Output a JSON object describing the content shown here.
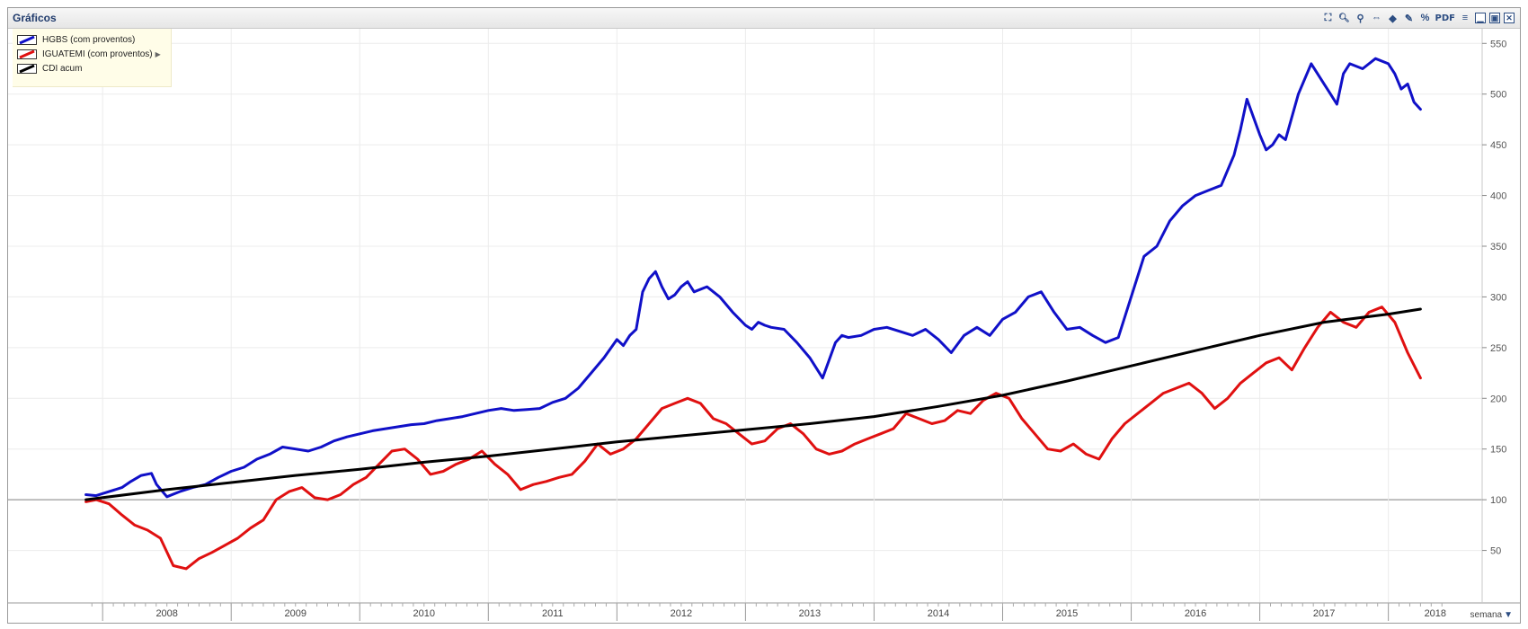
{
  "window": {
    "title": "Gráficos",
    "toolbar": [
      {
        "name": "fullscreen-icon",
        "glyph": "⛶"
      },
      {
        "name": "zoom-in-icon",
        "glyph": "🔍︎"
      },
      {
        "name": "zoom-out-icon",
        "glyph": "⚲"
      },
      {
        "name": "pan-icon",
        "glyph": "⇔"
      },
      {
        "name": "tag-icon",
        "glyph": "◆"
      },
      {
        "name": "draw-icon",
        "glyph": "✎"
      },
      {
        "name": "percent-icon",
        "glyph": "%"
      },
      {
        "name": "pdf-icon",
        "glyph": "PDF"
      },
      {
        "name": "menu-icon",
        "glyph": "≡"
      },
      {
        "name": "minimize-icon",
        "glyph": "▁"
      },
      {
        "name": "maximize-icon",
        "glyph": "▣"
      },
      {
        "name": "close-icon",
        "glyph": "✕"
      }
    ]
  },
  "interval": {
    "label": "semana"
  },
  "chart_data": {
    "type": "line",
    "title": "",
    "xlabel": "",
    "ylabel": "",
    "xlim": [
      2007.88,
      2018.45
    ],
    "ylim": [
      0,
      560
    ],
    "yticks": [
      50,
      100,
      150,
      200,
      250,
      300,
      350,
      400,
      450,
      500,
      550
    ],
    "reference_line": 100,
    "year_labels": [
      "2008",
      "2009",
      "2010",
      "2011",
      "2012",
      "2013",
      "2014",
      "2015",
      "2016",
      "2017",
      "2018"
    ],
    "legend_position": "top-left",
    "grid": true,
    "series": [
      {
        "name": "HGBS (com proventos)",
        "color": "#1010c8",
        "x": [
          2007.87,
          2007.95,
          2008.05,
          2008.15,
          2008.22,
          2008.3,
          2008.38,
          2008.42,
          2008.5,
          2008.6,
          2008.7,
          2008.8,
          2008.9,
          2009.0,
          2009.1,
          2009.2,
          2009.3,
          2009.4,
          2009.5,
          2009.6,
          2009.7,
          2009.8,
          2009.9,
          2010.0,
          2010.1,
          2010.2,
          2010.3,
          2010.4,
          2010.5,
          2010.6,
          2010.7,
          2010.8,
          2010.9,
          2011.0,
          2011.1,
          2011.2,
          2011.3,
          2011.4,
          2011.5,
          2011.6,
          2011.7,
          2011.8,
          2011.9,
          2012.0,
          2012.05,
          2012.1,
          2012.15,
          2012.2,
          2012.25,
          2012.3,
          2012.35,
          2012.4,
          2012.45,
          2012.5,
          2012.55,
          2012.6,
          2012.7,
          2012.8,
          2012.9,
          2013.0,
          2013.05,
          2013.1,
          2013.15,
          2013.2,
          2013.3,
          2013.4,
          2013.5,
          2013.6,
          2013.7,
          2013.75,
          2013.8,
          2013.9,
          2014.0,
          2014.1,
          2014.2,
          2014.3,
          2014.4,
          2014.5,
          2014.6,
          2014.7,
          2014.8,
          2014.9,
          2015.0,
          2015.1,
          2015.2,
          2015.3,
          2015.4,
          2015.5,
          2015.6,
          2015.7,
          2015.8,
          2015.9,
          2016.0,
          2016.1,
          2016.2,
          2016.3,
          2016.4,
          2016.5,
          2016.6,
          2016.7,
          2016.8,
          2016.85,
          2016.9,
          2017.0,
          2017.05,
          2017.1,
          2017.15,
          2017.2,
          2017.3,
          2017.4,
          2017.5,
          2017.55,
          2017.6,
          2017.65,
          2017.7,
          2017.8,
          2017.9,
          2018.0,
          2018.05,
          2018.1,
          2018.15,
          2018.2,
          2018.25
        ],
        "values": [
          105,
          104,
          108,
          112,
          118,
          124,
          126,
          115,
          103,
          108,
          112,
          115,
          122,
          128,
          132,
          140,
          145,
          152,
          150,
          148,
          152,
          158,
          162,
          165,
          168,
          170,
          172,
          174,
          175,
          178,
          180,
          182,
          185,
          188,
          190,
          188,
          189,
          190,
          196,
          200,
          210,
          225,
          240,
          258,
          252,
          262,
          268,
          305,
          318,
          325,
          310,
          298,
          302,
          310,
          315,
          305,
          310,
          300,
          285,
          272,
          268,
          275,
          272,
          270,
          268,
          255,
          240,
          220,
          255,
          262,
          260,
          262,
          268,
          270,
          266,
          262,
          268,
          258,
          245,
          262,
          270,
          262,
          278,
          285,
          300,
          305,
          285,
          268,
          270,
          262,
          255,
          260,
          300,
          340,
          350,
          375,
          390,
          400,
          405,
          410,
          440,
          465,
          495,
          460,
          445,
          450,
          460,
          455,
          500,
          530,
          510,
          500,
          490,
          520,
          530,
          525,
          535,
          530,
          520,
          505,
          510,
          492,
          485
        ]
      },
      {
        "name": "IGUATEMI (com proventos)",
        "color": "#e01010",
        "x": [
          2007.87,
          2007.95,
          2008.05,
          2008.15,
          2008.25,
          2008.35,
          2008.45,
          2008.55,
          2008.65,
          2008.75,
          2008.85,
          2008.95,
          2009.05,
          2009.15,
          2009.25,
          2009.35,
          2009.45,
          2009.55,
          2009.65,
          2009.75,
          2009.85,
          2009.95,
          2010.05,
          2010.15,
          2010.25,
          2010.35,
          2010.45,
          2010.55,
          2010.65,
          2010.75,
          2010.85,
          2010.95,
          2011.05,
          2011.15,
          2011.25,
          2011.35,
          2011.45,
          2011.55,
          2011.65,
          2011.75,
          2011.85,
          2011.95,
          2012.05,
          2012.15,
          2012.25,
          2012.35,
          2012.45,
          2012.55,
          2012.65,
          2012.75,
          2012.85,
          2012.95,
          2013.05,
          2013.15,
          2013.25,
          2013.35,
          2013.45,
          2013.55,
          2013.65,
          2013.75,
          2013.85,
          2013.95,
          2014.05,
          2014.15,
          2014.25,
          2014.35,
          2014.45,
          2014.55,
          2014.65,
          2014.75,
          2014.85,
          2014.95,
          2015.05,
          2015.15,
          2015.25,
          2015.35,
          2015.45,
          2015.55,
          2015.65,
          2015.75,
          2015.85,
          2015.95,
          2016.05,
          2016.15,
          2016.25,
          2016.35,
          2016.45,
          2016.55,
          2016.65,
          2016.75,
          2016.85,
          2016.95,
          2017.05,
          2017.15,
          2017.25,
          2017.35,
          2017.45,
          2017.55,
          2017.65,
          2017.75,
          2017.85,
          2017.95,
          2018.05,
          2018.15,
          2018.25
        ],
        "values": [
          98,
          100,
          96,
          85,
          75,
          70,
          62,
          35,
          32,
          42,
          48,
          55,
          62,
          72,
          80,
          100,
          108,
          112,
          102,
          100,
          105,
          115,
          122,
          135,
          148,
          150,
          140,
          125,
          128,
          135,
          140,
          148,
          135,
          125,
          110,
          115,
          118,
          122,
          125,
          138,
          155,
          145,
          150,
          160,
          175,
          190,
          195,
          200,
          195,
          180,
          175,
          165,
          155,
          158,
          170,
          175,
          165,
          150,
          145,
          148,
          155,
          160,
          165,
          170,
          185,
          180,
          175,
          178,
          188,
          185,
          198,
          205,
          200,
          180,
          165,
          150,
          148,
          155,
          145,
          140,
          160,
          175,
          185,
          195,
          205,
          210,
          215,
          205,
          190,
          200,
          215,
          225,
          235,
          240,
          228,
          250,
          270,
          285,
          275,
          270,
          285,
          290,
          275,
          245,
          220
        ]
      },
      {
        "name": "CDI acum",
        "color": "#000000",
        "x": [
          2007.87,
          2008.5,
          2009.0,
          2009.5,
          2010.0,
          2010.5,
          2011.0,
          2011.5,
          2012.0,
          2012.5,
          2013.0,
          2013.5,
          2014.0,
          2014.5,
          2015.0,
          2015.5,
          2016.0,
          2016.5,
          2017.0,
          2017.5,
          2018.0,
          2018.25
        ],
        "values": [
          100,
          110,
          117,
          124,
          130,
          137,
          143,
          150,
          157,
          163,
          169,
          175,
          182,
          192,
          203,
          217,
          232,
          247,
          262,
          275,
          283,
          288
        ]
      }
    ]
  }
}
